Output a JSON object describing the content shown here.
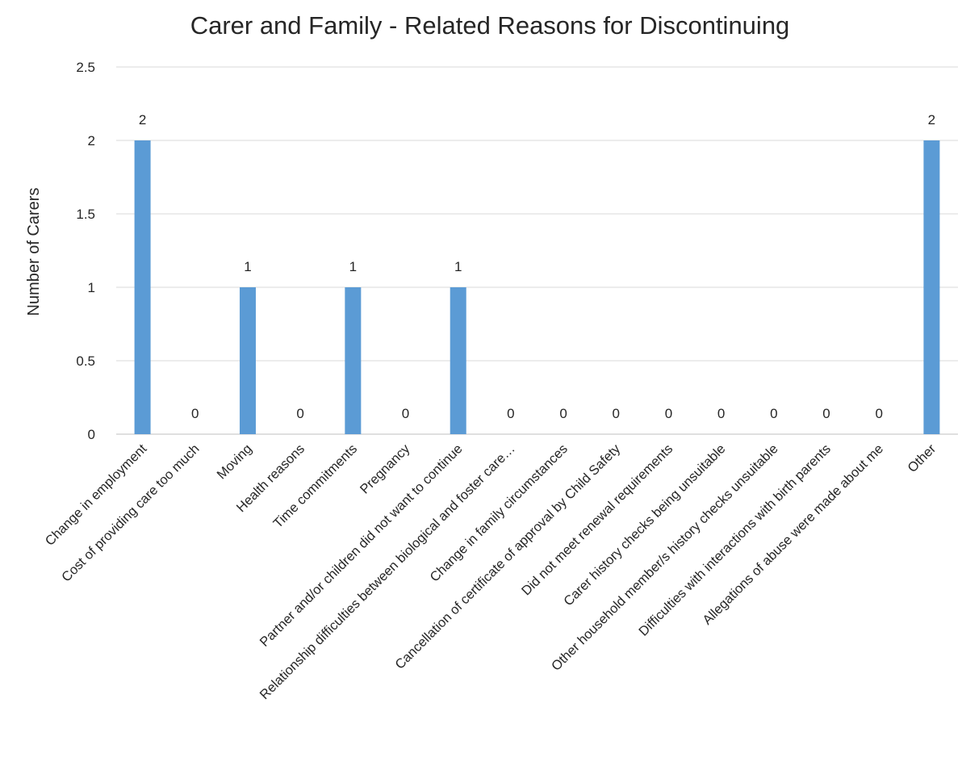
{
  "chart_data": {
    "type": "bar",
    "title": "Carer and Family - Related Reasons for Discontinuing",
    "xlabel": "",
    "ylabel": "Number of Carers",
    "ylim": [
      0,
      2.5
    ],
    "yticks": [
      "0",
      "0.5",
      "1",
      "1.5",
      "2",
      "2.5"
    ],
    "grid": true,
    "legend": "none",
    "bar_color": "#5b9bd5",
    "categories": [
      "Change in employment",
      "Cost of providing care too much",
      "Moving",
      "Health reasons",
      "Time commitments",
      "Pregnancy",
      "Partner and/or children did not want to continue",
      "Relationship difficulties between biological and foster care…",
      "Change in family circumstances",
      "Cancellation of certificate of approval by Child Safety",
      "Did not meet renewal requirements",
      "Carer history checks being unsuitable",
      "Other household member/s history checks unsuitable",
      "Difficulties with interactions with birth parents",
      "Allegations of abuse were made about me",
      "Other"
    ],
    "values": [
      2,
      0,
      1,
      0,
      1,
      0,
      1,
      0,
      0,
      0,
      0,
      0,
      0,
      0,
      0,
      2
    ],
    "data_labels": [
      "2",
      "0",
      "1",
      "0",
      "1",
      "0",
      "1",
      "0",
      "0",
      "0",
      "0",
      "0",
      "0",
      "0",
      "0",
      "2"
    ]
  }
}
